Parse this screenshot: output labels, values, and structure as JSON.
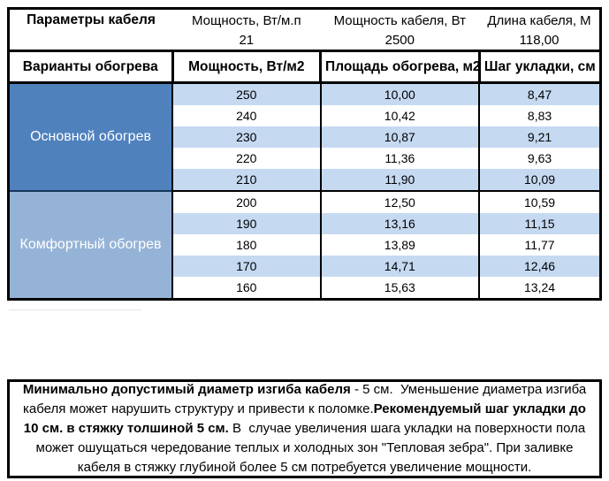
{
  "colors": {
    "section_main": "#4f81bd",
    "section_comfort": "#95b3d7",
    "band": "#c5d9f1",
    "section_divider": "#17365d",
    "border": "#000000",
    "side_text": "#ffffff"
  },
  "cable_params": {
    "title": "Параметры кабеля",
    "columns": [
      "Мощность, Вт/м.п",
      "Мощность кабеля, Вт",
      "Длина кабеля, М"
    ],
    "values": [
      "21",
      "2500",
      "118,00"
    ]
  },
  "heating_table": {
    "headers": [
      "Варианты обогрева",
      "Мощность, Вт/м2",
      "Площадь обогрева, м2",
      "Шаг укладки, см"
    ],
    "band_color": "#c5d9f1",
    "sections": [
      {
        "label": "Основной обогрев",
        "color": "#4f81bd",
        "rows": [
          [
            "250",
            "10,00",
            "8,47"
          ],
          [
            "240",
            "10,42",
            "8,83"
          ],
          [
            "230",
            "10,87",
            "9,21"
          ],
          [
            "220",
            "11,36",
            "9,63"
          ],
          [
            "210",
            "11,90",
            "10,09"
          ]
        ]
      },
      {
        "label": "Комфортный обогрев",
        "color": "#95b3d7",
        "rows": [
          [
            "200",
            "12,50",
            "10,59"
          ],
          [
            "190",
            "13,16",
            "11,15"
          ],
          [
            "180",
            "13,89",
            "11,77"
          ],
          [
            "170",
            "14,71",
            "12,46"
          ],
          [
            "160",
            "15,63",
            "13,24"
          ]
        ]
      }
    ]
  },
  "note": {
    "segments": [
      {
        "bold": true,
        "text": "Минимально допустимый диаметр изгиба кабеля"
      },
      {
        "bold": false,
        "text": " - 5 см.  Уменьшение диаметра изгиба кабеля может нарушить структуру и привести к поломке."
      },
      {
        "bold": true,
        "text": "Рекомендуемый шаг укладки до 10 см. в стяжку толшиной 5 см."
      },
      {
        "bold": false,
        "text": " В  случае увеличения шага укладки на поверхности пола может ошущаться чередование теплых и холодных зон \"Тепловая зебра\". При заливке кабеля в стяжку глубиной более 5 см потребуется увеличение мощности."
      }
    ]
  }
}
